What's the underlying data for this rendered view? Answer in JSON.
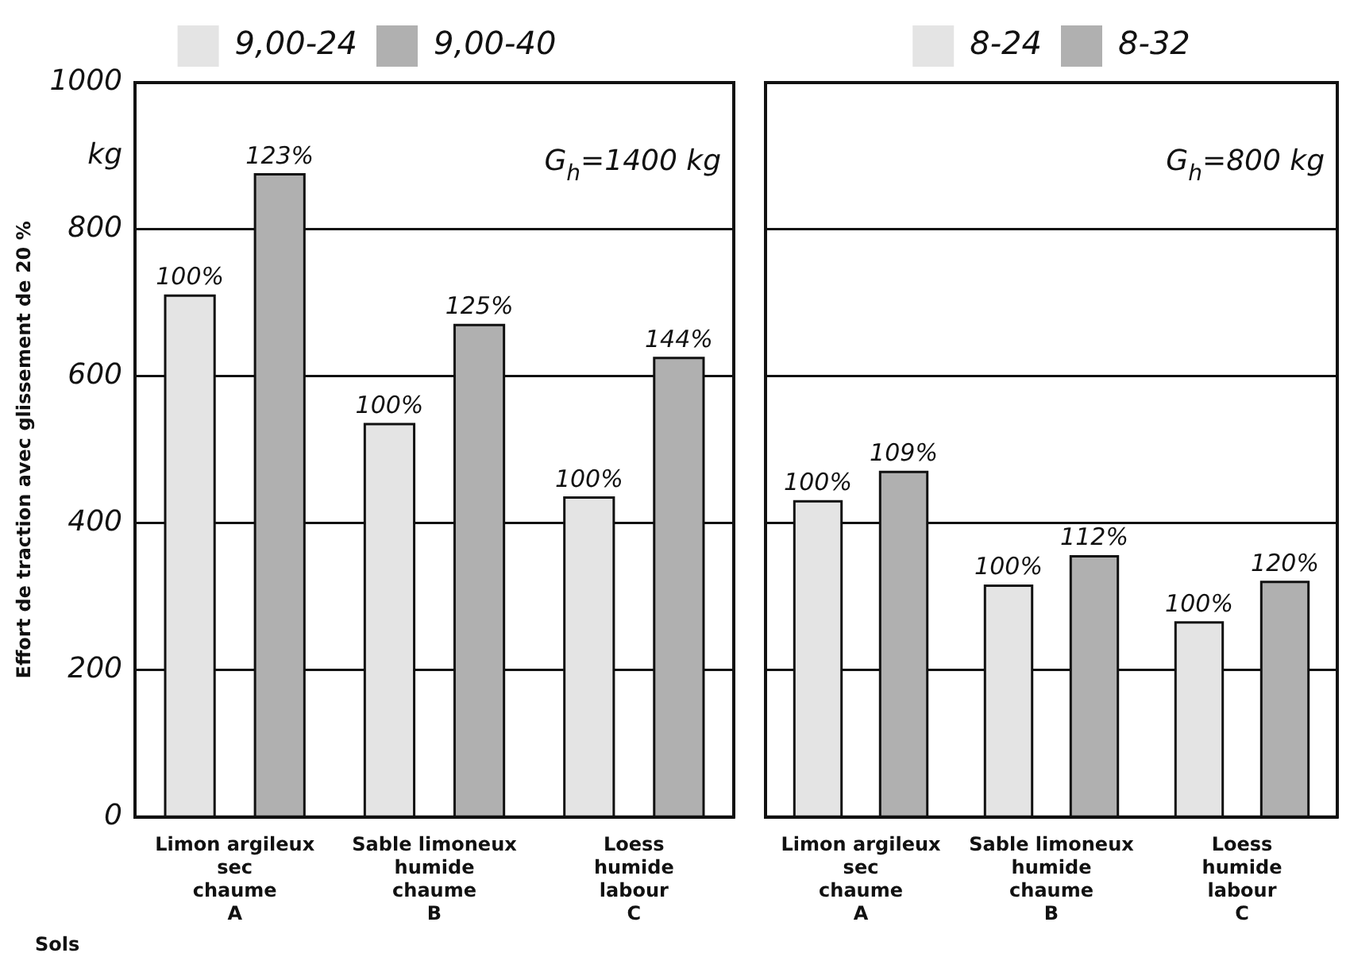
{
  "chart_data": [
    {
      "type": "bar",
      "ylabel": "Effort de traction avec glissement de 20 %",
      "categories": [
        "Limon argileux\nsec\nchaume\nA",
        "Sable limoneux\nhumide\nchaume\nB",
        "Loess\nhumide\nlabour\nC"
      ],
      "series": [
        {
          "name": "9,00-24",
          "color": "#e4e4e4",
          "values": [
            710,
            535,
            435
          ]
        },
        {
          "name": "9,00-40",
          "color": "#b0b0b0",
          "values": [
            875,
            670,
            625
          ]
        }
      ],
      "ylim": [
        0,
        1000
      ],
      "yticks": [
        0,
        200,
        400,
        600,
        800,
        {
          "value": 900,
          "label": "kg"
        },
        1000
      ],
      "grid": "y",
      "legend": "top",
      "annotations": [
        "G$_{h}$=1400 kg",
        "100%",
        "123%",
        "100%",
        "125%",
        "100%",
        "144%",
        "Sols"
      ]
    },
    {
      "type": "bar",
      "categories": [
        "Limon argileux\nsec\nchaume\nA",
        "Sable limoneux\nhumide\nchaume\nB",
        "Loess\nhumide\nlabour\nC"
      ],
      "series": [
        {
          "name": "8-24",
          "color": "#e4e4e4",
          "values": [
            430,
            315,
            265
          ]
        },
        {
          "name": "8-32",
          "color": "#b0b0b0",
          "values": [
            470,
            355,
            320
          ]
        }
      ],
      "ylim": [
        0,
        1000
      ],
      "yticks": [
        0,
        200,
        400,
        600,
        800,
        1000
      ],
      "grid": "y",
      "legend": "top",
      "tick_labels": "x",
      "annotations": [
        "G$_{h}$=800 kg",
        "100%",
        "109%",
        "100%",
        "112%",
        "100%",
        "120%"
      ]
    }
  ]
}
